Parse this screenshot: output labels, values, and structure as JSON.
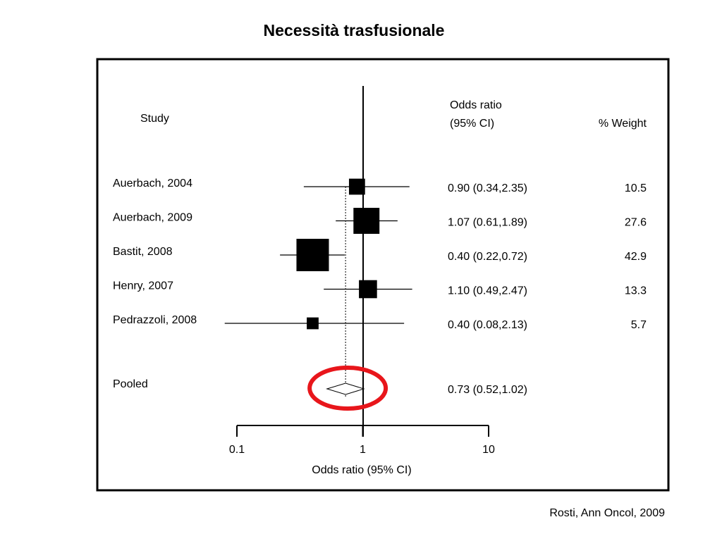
{
  "slide": {
    "title": "Necessità trasfusionale",
    "citation": "Rosti, Ann Oncol, 2009"
  },
  "chart_data": {
    "type": "forest",
    "headers": {
      "study": "Study",
      "or_line1": "Odds ratio",
      "or_line2": "(95% CI)",
      "weight": "% Weight"
    },
    "studies": [
      {
        "name": "Auerbach, 2004",
        "or": 0.9,
        "lo": 0.34,
        "hi": 2.35,
        "label": "0.90 (0.34,2.35)",
        "weight": 10.5,
        "weight_label": "10.5"
      },
      {
        "name": "Auerbach, 2009",
        "or": 1.07,
        "lo": 0.61,
        "hi": 1.89,
        "label": "1.07 (0.61,1.89)",
        "weight": 27.6,
        "weight_label": "27.6"
      },
      {
        "name": "Bastit, 2008",
        "or": 0.4,
        "lo": 0.22,
        "hi": 0.72,
        "label": "0.40 (0.22,0.72)",
        "weight": 42.9,
        "weight_label": "42.9"
      },
      {
        "name": "Henry, 2007",
        "or": 1.1,
        "lo": 0.49,
        "hi": 2.47,
        "label": "1.10 (0.49,2.47)",
        "weight": 13.3,
        "weight_label": "13.3"
      },
      {
        "name": "Pedrazzoli, 2008",
        "or": 0.4,
        "lo": 0.08,
        "hi": 2.13,
        "label": "0.40 (0.08,2.13)",
        "weight": 5.7,
        "weight_label": "5.7"
      }
    ],
    "pooled": {
      "name": "Pooled",
      "or": 0.73,
      "lo": 0.52,
      "hi": 1.02,
      "label": "0.73 (0.52,1.02)"
    },
    "x_scale": "log",
    "xlim": [
      0.1,
      10
    ],
    "x_ticks": [
      0.1,
      1,
      10
    ],
    "x_tick_labels": [
      "0.1",
      "1",
      "10"
    ],
    "xlabel": "Odds ratio  (95% CI)",
    "null_line": 1,
    "highlight": {
      "target": "pooled",
      "shape": "ellipse",
      "color": "#e8161b"
    }
  }
}
